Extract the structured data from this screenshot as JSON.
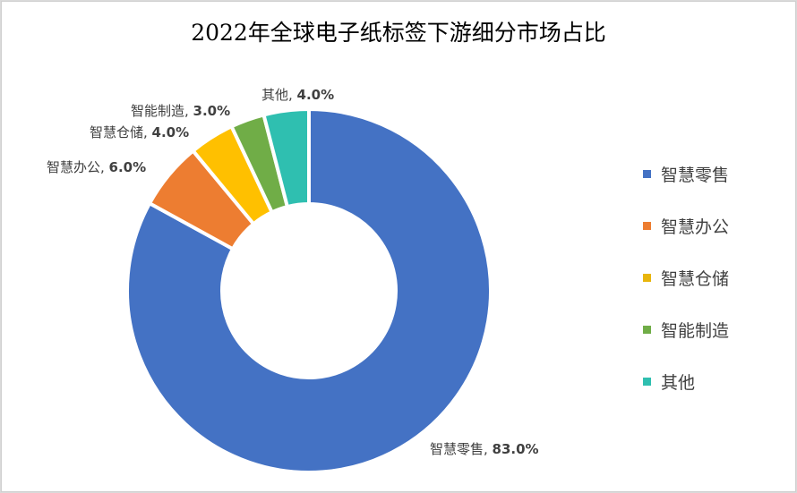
{
  "chart_data": {
    "type": "pie",
    "subtype": "donut",
    "title": "2022年全球电子纸标签下游细分市场占比",
    "categories": [
      "智慧零售",
      "智慧办公",
      "智慧仓储",
      "智能制造",
      "其他"
    ],
    "values": [
      83.0,
      6.0,
      4.0,
      3.0,
      4.0
    ],
    "unit": "%",
    "colors": [
      "#4472c4",
      "#ed7d31",
      "#ffc000",
      "#70ad47",
      "#2fbfb0"
    ],
    "data_labels": [
      "智慧零售, 83.0%",
      "智慧办公, 6.0%",
      "智慧仓储, 4.0%",
      "智能制造, 3.0%",
      "其他, 4.0%"
    ],
    "legend_position": "right"
  },
  "title": "2022年全球电子纸标签下游细分市场占比",
  "labels": {
    "retail": {
      "name": "智慧零售, ",
      "value": "83.0%"
    },
    "office": {
      "name": "智慧办公, ",
      "value": "6.0%"
    },
    "warehouse": {
      "name": "智慧仓储, ",
      "value": "4.0%"
    },
    "manufacturing": {
      "name": "智能制造, ",
      "value": "3.0%"
    },
    "other": {
      "name": "其他, ",
      "value": "4.0%"
    }
  },
  "legend": [
    {
      "label": "智慧零售",
      "color": "#4472c4"
    },
    {
      "label": "智慧办公",
      "color": "#ed7d31"
    },
    {
      "label": "智慧仓储",
      "color": "#e8b50c"
    },
    {
      "label": "智能制造",
      "color": "#70ad47"
    },
    {
      "label": "其他",
      "color": "#2fbfb0"
    }
  ]
}
